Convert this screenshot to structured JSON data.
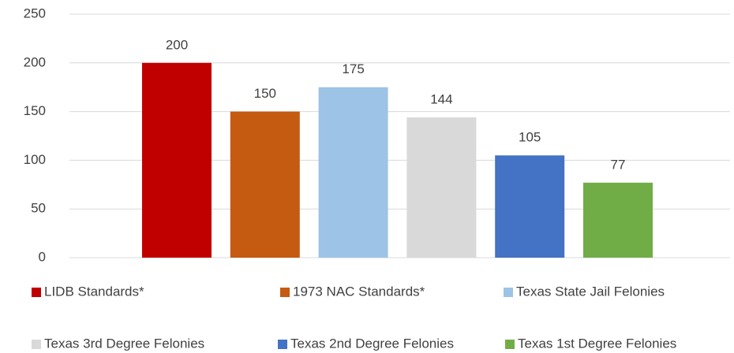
{
  "chart_data": {
    "type": "bar",
    "categories": [
      null
    ],
    "series": [
      {
        "name": "LIDB Standards*",
        "color": "#c00000",
        "values": [
          200
        ]
      },
      {
        "name": "1973 NAC Standards*",
        "color": "#c55a11",
        "values": [
          150
        ]
      },
      {
        "name": "Texas State Jail Felonies",
        "color": "#9dc3e6",
        "values": [
          175
        ]
      },
      {
        "name": "Texas 3rd Degree Felonies",
        "color": "#d9d9d9",
        "values": [
          144
        ]
      },
      {
        "name": "Texas 2nd Degree Felonies",
        "color": "#4472c4",
        "values": [
          105
        ]
      },
      {
        "name": "Texas 1st Degree Felonies",
        "color": "#70ad47",
        "values": [
          77
        ]
      }
    ],
    "ylim": [
      0,
      250
    ],
    "yticks": [
      0,
      50,
      100,
      150,
      200,
      250
    ],
    "grid": true,
    "legend": "bottom"
  }
}
